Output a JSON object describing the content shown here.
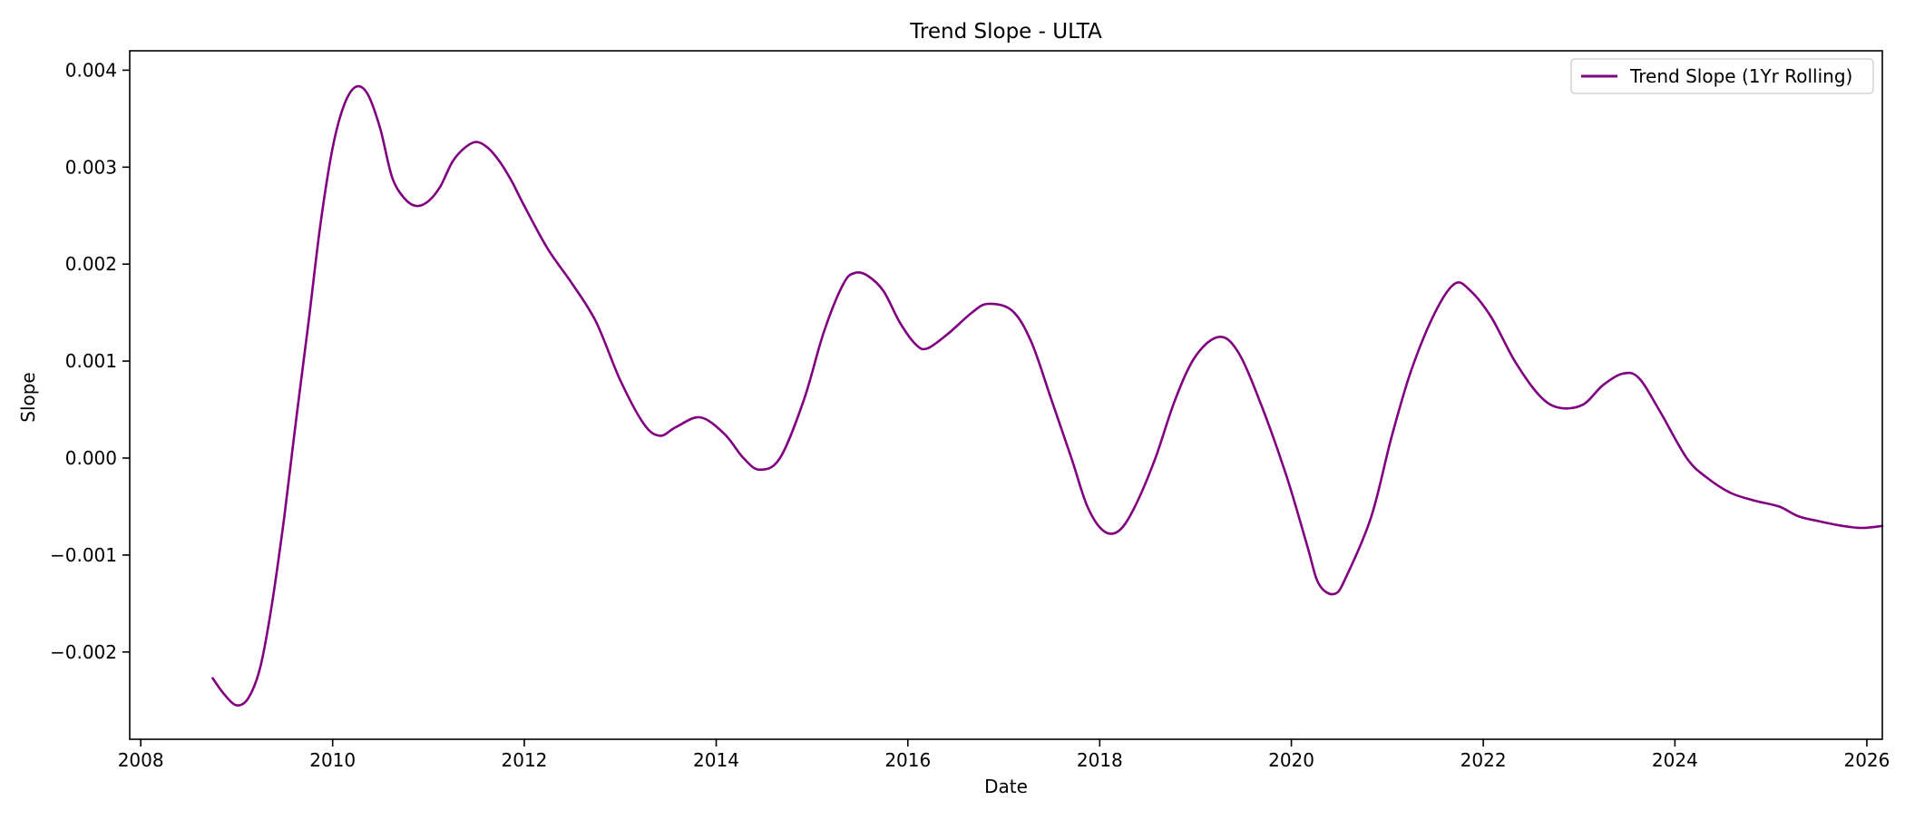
{
  "chart_data": {
    "type": "line",
    "title": "Trend Slope - ULTA",
    "xlabel": "Date",
    "ylabel": "Slope",
    "xlim": [
      "2007-11-20",
      "2026-03-01"
    ],
    "ylim": [
      -0.0029,
      0.0042
    ],
    "x_ticks": [
      "2008",
      "2010",
      "2012",
      "2014",
      "2016",
      "2018",
      "2020",
      "2022",
      "2024",
      "2026"
    ],
    "y_ticks": [
      -0.002,
      -0.001,
      0.0,
      0.001,
      0.002,
      0.003,
      0.004
    ],
    "y_tick_labels": [
      "−0.002",
      "−0.001",
      "0.000",
      "0.001",
      "0.002",
      "0.003",
      "0.004"
    ],
    "grid": false,
    "legend": "top-right",
    "series": [
      {
        "name": "Trend Slope (1Yr Rolling)",
        "color": "#800080",
        "points": [
          [
            "2008-10-01",
            -0.00227
          ],
          [
            "2008-11-15",
            -0.00244
          ],
          [
            "2009-01-01",
            -0.00255
          ],
          [
            "2009-02-15",
            -0.00247
          ],
          [
            "2009-04-01",
            -0.00215
          ],
          [
            "2009-05-15",
            -0.0015
          ],
          [
            "2009-07-01",
            -0.0006
          ],
          [
            "2009-08-15",
            0.0004
          ],
          [
            "2009-10-01",
            0.0014
          ],
          [
            "2009-11-15",
            0.0024
          ],
          [
            "2010-01-01",
            0.0032
          ],
          [
            "2010-02-15",
            0.00365
          ],
          [
            "2010-04-01",
            0.00383
          ],
          [
            "2010-05-15",
            0.00375
          ],
          [
            "2010-07-01",
            0.0034
          ],
          [
            "2010-08-15",
            0.0029
          ],
          [
            "2010-10-01",
            0.00268
          ],
          [
            "2010-11-15",
            0.0026
          ],
          [
            "2011-01-01",
            0.00265
          ],
          [
            "2011-02-15",
            0.0028
          ],
          [
            "2011-04-01",
            0.00305
          ],
          [
            "2011-05-15",
            0.00319
          ],
          [
            "2011-07-01",
            0.00326
          ],
          [
            "2011-08-15",
            0.0032
          ],
          [
            "2011-10-01",
            0.00305
          ],
          [
            "2011-11-15",
            0.00285
          ],
          [
            "2012-01-01",
            0.0026
          ],
          [
            "2012-04-01",
            0.00215
          ],
          [
            "2012-07-01",
            0.0018
          ],
          [
            "2012-10-01",
            0.0014
          ],
          [
            "2013-01-01",
            0.0008
          ],
          [
            "2013-04-01",
            0.00035
          ],
          [
            "2013-06-01",
            0.00023
          ],
          [
            "2013-08-01",
            0.00032
          ],
          [
            "2013-11-01",
            0.00042
          ],
          [
            "2014-02-01",
            0.00025
          ],
          [
            "2014-04-15",
            0.0
          ],
          [
            "2014-06-15",
            -0.00012
          ],
          [
            "2014-09-01",
            0.0
          ],
          [
            "2014-12-01",
            0.0006
          ],
          [
            "2015-02-15",
            0.0013
          ],
          [
            "2015-05-01",
            0.0018
          ],
          [
            "2015-06-15",
            0.00191
          ],
          [
            "2015-08-01",
            0.00188
          ],
          [
            "2015-10-01",
            0.00172
          ],
          [
            "2015-12-01",
            0.0014
          ],
          [
            "2016-02-01",
            0.00117
          ],
          [
            "2016-03-15",
            0.00113
          ],
          [
            "2016-06-01",
            0.00128
          ],
          [
            "2016-09-01",
            0.0015
          ],
          [
            "2016-11-01",
            0.00159
          ],
          [
            "2017-02-01",
            0.00152
          ],
          [
            "2017-04-15",
            0.0012
          ],
          [
            "2017-07-01",
            0.0006
          ],
          [
            "2017-09-15",
            0.0
          ],
          [
            "2017-11-15",
            -0.0005
          ],
          [
            "2018-01-15",
            -0.00075
          ],
          [
            "2018-03-15",
            -0.00075
          ],
          [
            "2018-05-15",
            -0.0005
          ],
          [
            "2018-08-01",
            0.0
          ],
          [
            "2018-10-15",
            0.0006
          ],
          [
            "2019-01-01",
            0.00105
          ],
          [
            "2019-04-01",
            0.00125
          ],
          [
            "2019-06-15",
            0.00108
          ],
          [
            "2019-09-15",
            0.0005
          ],
          [
            "2019-12-15",
            -0.0002
          ],
          [
            "2020-03-01",
            -0.0009
          ],
          [
            "2020-04-15",
            -0.0013
          ],
          [
            "2020-06-15",
            -0.0014
          ],
          [
            "2020-08-01",
            -0.0012
          ],
          [
            "2020-11-01",
            -0.0006
          ],
          [
            "2021-01-15",
            0.0002
          ],
          [
            "2021-04-01",
            0.0009
          ],
          [
            "2021-07-01",
            0.0015
          ],
          [
            "2021-09-15",
            0.0018
          ],
          [
            "2021-11-15",
            0.00172
          ],
          [
            "2022-02-01",
            0.00145
          ],
          [
            "2022-05-01",
            0.001
          ],
          [
            "2022-08-01",
            0.00065
          ],
          [
            "2022-10-15",
            0.00052
          ],
          [
            "2023-01-15",
            0.00055
          ],
          [
            "2023-04-01",
            0.00075
          ],
          [
            "2023-06-15",
            0.00087
          ],
          [
            "2023-08-15",
            0.00083
          ],
          [
            "2023-11-01",
            0.0005
          ],
          [
            "2024-02-15",
            0.0
          ],
          [
            "2024-05-01",
            -0.0002
          ],
          [
            "2024-08-01",
            -0.00036
          ],
          [
            "2024-11-01",
            -0.00044
          ],
          [
            "2025-02-01",
            -0.0005
          ],
          [
            "2025-04-15",
            -0.0006
          ],
          [
            "2025-07-01",
            -0.00065
          ],
          [
            "2025-10-01",
            -0.0007
          ],
          [
            "2025-12-15",
            -0.00072
          ],
          [
            "2026-03-01",
            -0.0007
          ]
        ]
      }
    ]
  }
}
